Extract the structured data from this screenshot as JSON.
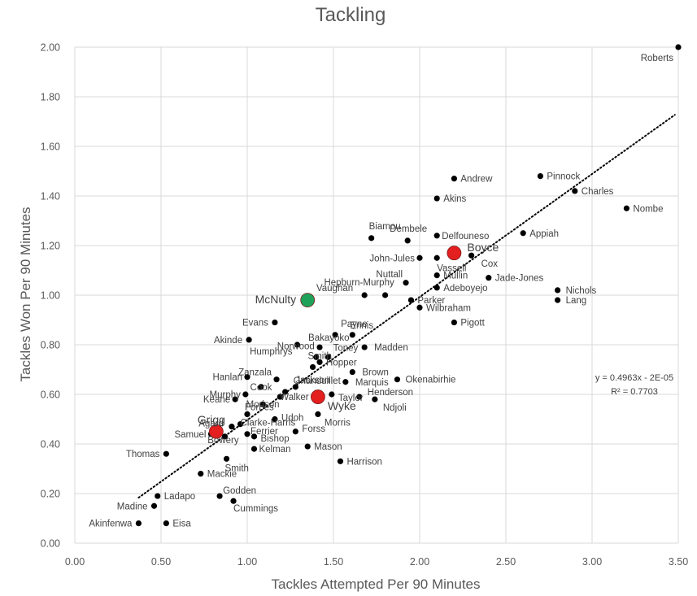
{
  "chart_data": {
    "type": "scatter",
    "title": "Tackling",
    "xlabel": "Tackles Attempted Per 90 Minutes",
    "ylabel": "Tackles Won Per 90 Minutes",
    "xlim": [
      0,
      3.5
    ],
    "ylim": [
      0,
      2.0
    ],
    "xticks": [
      "0.00",
      "0.50",
      "1.00",
      "1.50",
      "2.00",
      "2.50",
      "3.00",
      "3.50"
    ],
    "xtick_values": [
      0,
      0.5,
      1.0,
      1.5,
      2.0,
      2.5,
      3.0,
      3.5
    ],
    "yticks": [
      "0.00",
      "0.20",
      "0.40",
      "0.60",
      "0.80",
      "1.00",
      "1.20",
      "1.40",
      "1.60",
      "1.80",
      "2.00"
    ],
    "ytick_values": [
      0,
      0.2,
      0.4,
      0.6,
      0.8,
      1.0,
      1.2,
      1.4,
      1.6,
      1.8,
      2.0
    ],
    "grid": true,
    "marker_color": "#000000",
    "trendline": {
      "slope": 0.4963,
      "intercept": -2e-05,
      "x_range": [
        0.37,
        3.48
      ],
      "style": "dotted",
      "color": "#000000",
      "equation_text": "y = 0.4963x - 2E-05",
      "r2_text": "R² = 0.7703"
    },
    "points": [
      {
        "name": "Roberts",
        "x": 3.5,
        "y": 2.0
      },
      {
        "name": "Andrew",
        "x": 2.2,
        "y": 1.47
      },
      {
        "name": "Pinnock",
        "x": 2.7,
        "y": 1.48
      },
      {
        "name": "Charles",
        "x": 2.9,
        "y": 1.42
      },
      {
        "name": "Akins",
        "x": 2.1,
        "y": 1.39
      },
      {
        "name": "Nombe",
        "x": 3.2,
        "y": 1.35
      },
      {
        "name": "Biamou",
        "x": 1.72,
        "y": 1.23
      },
      {
        "name": "Dembele",
        "x": 1.93,
        "y": 1.22
      },
      {
        "name": "Delfouneso",
        "x": 2.1,
        "y": 1.24
      },
      {
        "name": "Appiah",
        "x": 2.6,
        "y": 1.25
      },
      {
        "name": "John-Jules",
        "x": 2.0,
        "y": 1.15
      },
      {
        "name": "Vassell",
        "x": 2.1,
        "y": 1.15
      },
      {
        "name": "Cox",
        "x": 2.3,
        "y": 1.16
      },
      {
        "name": "Mullin",
        "x": 2.1,
        "y": 1.08
      },
      {
        "name": "Nuttall",
        "x": 1.92,
        "y": 1.05
      },
      {
        "name": "Jade-Jones",
        "x": 2.4,
        "y": 1.07
      },
      {
        "name": "Hepburn-Murphy",
        "x": 1.8,
        "y": 1.0
      },
      {
        "name": "Vaughan",
        "x": 1.68,
        "y": 1.0
      },
      {
        "name": "Adeboyejo",
        "x": 2.1,
        "y": 1.03
      },
      {
        "name": "Parker",
        "x": 1.95,
        "y": 0.98
      },
      {
        "name": "Wilbraham",
        "x": 2.0,
        "y": 0.95
      },
      {
        "name": "Nichols",
        "x": 2.8,
        "y": 1.02
      },
      {
        "name": "Lang",
        "x": 2.8,
        "y": 0.98
      },
      {
        "name": "Evans",
        "x": 1.16,
        "y": 0.89
      },
      {
        "name": "Pigott",
        "x": 2.2,
        "y": 0.89
      },
      {
        "name": "Payne",
        "x": 1.51,
        "y": 0.84
      },
      {
        "name": "Ennis",
        "x": 1.61,
        "y": 0.84
      },
      {
        "name": "Akinde",
        "x": 1.01,
        "y": 0.82
      },
      {
        "name": "Bakayoko",
        "x": 1.42,
        "y": 0.79
      },
      {
        "name": "Humphrys",
        "x": 1.29,
        "y": 0.8
      },
      {
        "name": "Madden",
        "x": 1.68,
        "y": 0.79
      },
      {
        "name": "Toney",
        "x": 1.47,
        "y": 0.75
      },
      {
        "name": "Hopper",
        "x": 1.42,
        "y": 0.73
      },
      {
        "name": "Norwood",
        "x": 1.4,
        "y": 0.75
      },
      {
        "name": "Smith",
        "x": 1.38,
        "y": 0.71
      },
      {
        "name": "Brown",
        "x": 1.61,
        "y": 0.69
      },
      {
        "name": "Hanlan",
        "x": 1.0,
        "y": 0.67
      },
      {
        "name": "Zanzala",
        "x": 1.17,
        "y": 0.66
      },
      {
        "name": "Jackson",
        "x": 1.28,
        "y": 0.63
      },
      {
        "name": "Marquis",
        "x": 1.57,
        "y": 0.65
      },
      {
        "name": "Okenabirhie",
        "x": 1.87,
        "y": 0.66
      },
      {
        "name": "Murphy",
        "x": 0.99,
        "y": 0.6
      },
      {
        "name": "Cook",
        "x": 1.08,
        "y": 0.63
      },
      {
        "name": "Gnanduillet",
        "x": 1.22,
        "y": 0.61
      },
      {
        "name": "Taylor",
        "x": 1.49,
        "y": 0.6
      },
      {
        "name": "Henderson",
        "x": 1.65,
        "y": 0.59
      },
      {
        "name": "Keane",
        "x": 0.93,
        "y": 0.58
      },
      {
        "name": "Walker",
        "x": 1.19,
        "y": 0.59
      },
      {
        "name": "Ndjoli",
        "x": 1.74,
        "y": 0.58
      },
      {
        "name": "Morison",
        "x": 1.09,
        "y": 0.56
      },
      {
        "name": "Forbes",
        "x": 1.0,
        "y": 0.52
      },
      {
        "name": "Udoh",
        "x": 1.16,
        "y": 0.5
      },
      {
        "name": "Morris",
        "x": 1.41,
        "y": 0.52
      },
      {
        "name": "Agard",
        "x": 0.91,
        "y": 0.47
      },
      {
        "name": "Clarke-Harris",
        "x": 0.96,
        "y": 0.48
      },
      {
        "name": "Forss",
        "x": 1.28,
        "y": 0.45
      },
      {
        "name": "Samuel",
        "x": 0.79,
        "y": 0.44
      },
      {
        "name": "Ferrier",
        "x": 1.0,
        "y": 0.44
      },
      {
        "name": "Bishop",
        "x": 1.04,
        "y": 0.43
      },
      {
        "name": "Bowery",
        "x": 0.87,
        "y": 0.43
      },
      {
        "name": "Kelman",
        "x": 1.04,
        "y": 0.38
      },
      {
        "name": "Mason",
        "x": 1.35,
        "y": 0.39
      },
      {
        "name": "Thomas",
        "x": 0.53,
        "y": 0.36
      },
      {
        "name": "Smith",
        "x": 0.88,
        "y": 0.34
      },
      {
        "name": "Harrison",
        "x": 1.54,
        "y": 0.33
      },
      {
        "name": "Mackie",
        "x": 0.73,
        "y": 0.28
      },
      {
        "name": "Ladapo",
        "x": 0.48,
        "y": 0.19
      },
      {
        "name": "Godden",
        "x": 0.84,
        "y": 0.19
      },
      {
        "name": "Madine",
        "x": 0.46,
        "y": 0.15
      },
      {
        "name": "Cummings",
        "x": 0.92,
        "y": 0.17
      },
      {
        "name": "Akinfenwa",
        "x": 0.37,
        "y": 0.08
      },
      {
        "name": "Eisa",
        "x": 0.53,
        "y": 0.08
      }
    ],
    "highlights": [
      {
        "name": "McNulty",
        "x": 1.35,
        "y": 0.98,
        "color": "#1fa15a"
      },
      {
        "name": "Boyce",
        "x": 2.2,
        "y": 1.17,
        "color": "#e31f1f"
      },
      {
        "name": "Wyke",
        "x": 1.41,
        "y": 0.59,
        "color": "#e31f1f"
      },
      {
        "name": "Grigg",
        "x": 0.82,
        "y": 0.45,
        "color": "#e31f1f"
      }
    ]
  }
}
